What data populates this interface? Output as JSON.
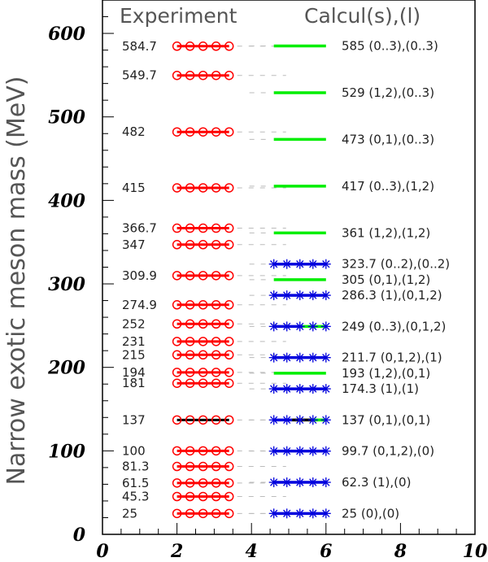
{
  "chart_data": {
    "type": "scatter",
    "headers": {
      "experiment": "Experiment",
      "calculation": "Calcul(s),(l)"
    },
    "ylabel": "Narrow exotic meson mass (MeV)",
    "xlabel": "",
    "xlim": [
      0,
      10
    ],
    "ylim": [
      0,
      640
    ],
    "xticks": [
      "0",
      "2",
      "4",
      "6",
      "8",
      "10"
    ],
    "yticks": [
      "0",
      "100",
      "200",
      "300",
      "400",
      "500",
      "600"
    ],
    "experiment_x_range": [
      2.0,
      3.4
    ],
    "calculation_x_range": [
      4.6,
      6.0
    ],
    "experiment": [
      {
        "mass": 25,
        "label": "25"
      },
      {
        "mass": 45.3,
        "label": "45.3"
      },
      {
        "mass": 61.5,
        "label": "61.5"
      },
      {
        "mass": 81.3,
        "label": "81.3"
      },
      {
        "mass": 100,
        "label": "100"
      },
      {
        "mass": 137,
        "label": "137"
      },
      {
        "mass": 181,
        "label": "181"
      },
      {
        "mass": 194,
        "label": "194"
      },
      {
        "mass": 215,
        "label": "215"
      },
      {
        "mass": 231,
        "label": "231"
      },
      {
        "mass": 252,
        "label": "252"
      },
      {
        "mass": 274.9,
        "label": "274.9"
      },
      {
        "mass": 309.9,
        "label": "309.9"
      },
      {
        "mass": 347,
        "label": "347"
      },
      {
        "mass": 366.7,
        "label": "366.7"
      },
      {
        "mass": 415,
        "label": "415"
      },
      {
        "mass": 482,
        "label": "482"
      },
      {
        "mass": 549.7,
        "label": "549.7"
      },
      {
        "mass": 584.7,
        "label": "584.7"
      }
    ],
    "calculations": [
      {
        "mass": 25,
        "label": "25 (0),(0)",
        "style": "blue-star"
      },
      {
        "mass": 62.3,
        "label": "62.3 (1),(0)",
        "style": "blue-star"
      },
      {
        "mass": 99.7,
        "label": "99.7 (0,1,2),(0)",
        "style": "blue-star"
      },
      {
        "mass": 137,
        "label": "137 (0,1),(0,1)",
        "style": "mixed"
      },
      {
        "mass": 174.3,
        "label": "174.3 (1),(1)",
        "style": "blue-star"
      },
      {
        "mass": 193,
        "label": "193 (1,2),(0,1)",
        "style": "green"
      },
      {
        "mass": 211.7,
        "label": "211.7 (0,1,2),(1)",
        "style": "blue-star"
      },
      {
        "mass": 249,
        "label": "249 (0..3),(0,1,2)",
        "style": "blue-green"
      },
      {
        "mass": 286.3,
        "label": "286.3 (1),(0,1,2)",
        "style": "blue-star"
      },
      {
        "mass": 305,
        "label": "305 (0,1),(1,2)",
        "style": "green"
      },
      {
        "mass": 323.7,
        "label": "323.7 (0..2),(0..2)",
        "style": "blue-star"
      },
      {
        "mass": 361,
        "label": "361 (1,2),(1,2)",
        "style": "green"
      },
      {
        "mass": 417,
        "label": "417 (0..3),(1,2)",
        "style": "green"
      },
      {
        "mass": 473,
        "label": "473 (0,1),(0..3)",
        "style": "green"
      },
      {
        "mass": 529,
        "label": "529 (1,2),(0..3)",
        "style": "green"
      },
      {
        "mass": 585,
        "label": "585 (0..3),(0..3)",
        "style": "green"
      }
    ],
    "colors": {
      "experiment": "#ff0000",
      "experiment_137": "#000000",
      "calc_green": "#00ee00",
      "calc_blue": "#0000dd",
      "dash": "#bbbbbb",
      "axis": "#000000",
      "header": "#555555"
    },
    "grid": false
  }
}
